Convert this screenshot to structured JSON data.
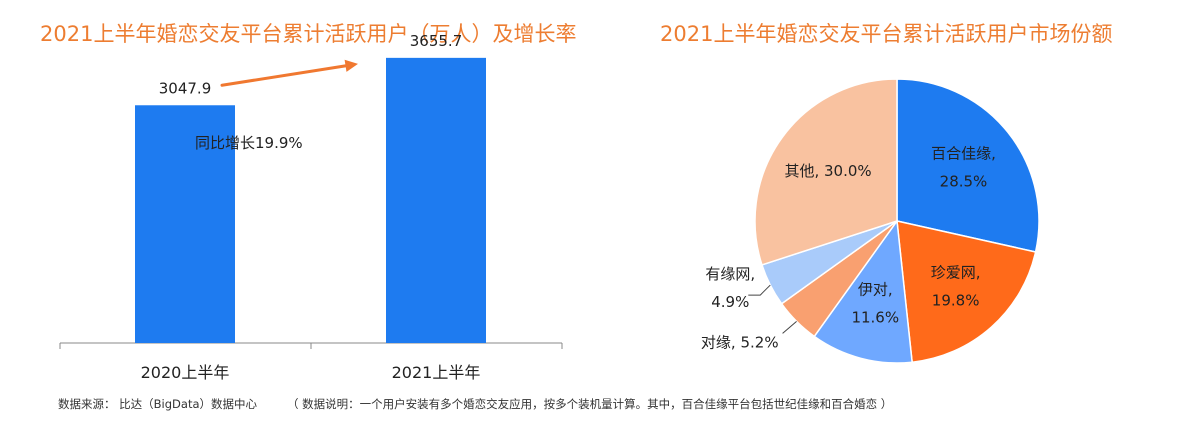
{
  "colors": {
    "title": "#ED7D31",
    "bar": "#1E7BF0",
    "arrow": "#F07830"
  },
  "footer": {
    "source": "数据来源： 比达（BigData）数据中心",
    "note": "（ 数据说明：一个用户安装有多个婚恋交友应用，按多个装机量计算。其中，百合佳缘平台包括世纪佳缘和百合婚恋 ）"
  },
  "chart_data": [
    {
      "type": "bar",
      "title": "2021上半年婚恋交友平台累计活跃用户（万人）及增长率",
      "categories": [
        "2020上半年",
        "2021上半年"
      ],
      "values": [
        3047.9,
        3655.7
      ],
      "value_labels": [
        "3047.9",
        "3655.7"
      ],
      "ylim": [
        0,
        4000
      ],
      "grid": false,
      "annotation": "同比增长19.9%",
      "color": "#1E7BF0"
    },
    {
      "type": "pie",
      "title": "2021上半年婚恋交友平台累计活跃用户市场份额",
      "slices": [
        {
          "label": "百合佳缘,",
          "pct": "28.5%",
          "value": 28.5,
          "color": "#1E7BF0"
        },
        {
          "label": "珍爱网,",
          "pct": "19.8%",
          "value": 19.8,
          "color": "#FF6A1A"
        },
        {
          "label": "伊对,",
          "pct": "11.6%",
          "value": 11.6,
          "color": "#6FA8FF"
        },
        {
          "label": "对缘, 5.2%",
          "pct": "",
          "value": 5.2,
          "color": "#F9A070"
        },
        {
          "label": "有缘网,",
          "pct": "4.9%",
          "value": 4.9,
          "color": "#A9CBFA"
        },
        {
          "label": "其他, 30.0%",
          "pct": "",
          "value": 30.0,
          "color": "#F9C2A0"
        }
      ]
    }
  ]
}
